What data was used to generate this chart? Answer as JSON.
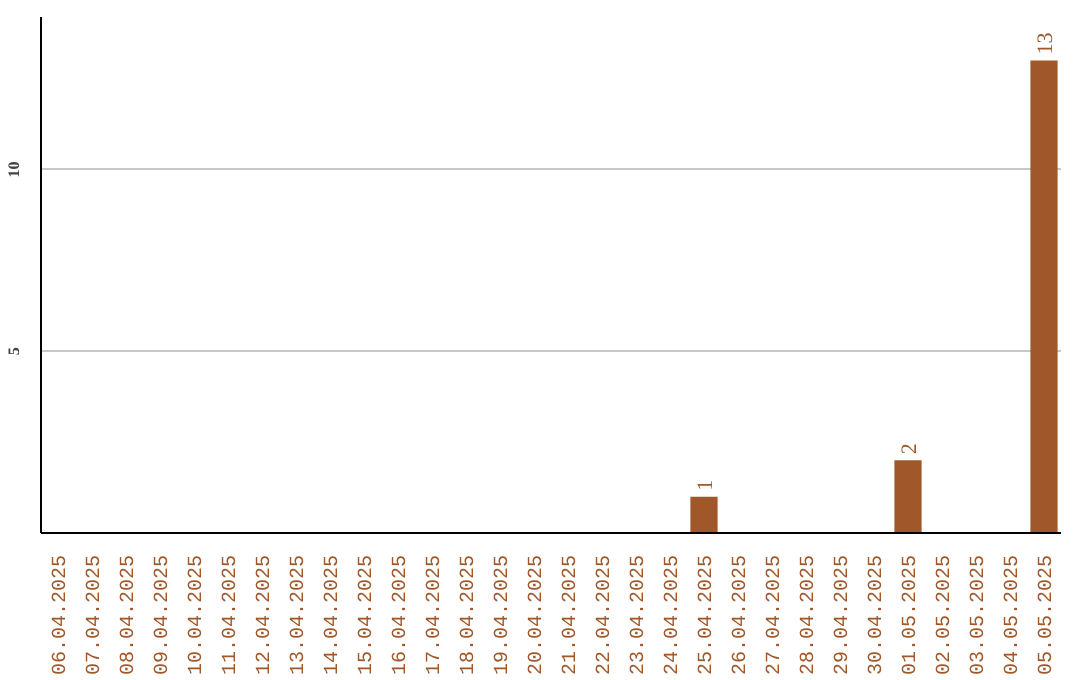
{
  "chart_data": {
    "type": "bar",
    "categories": [
      "06.04.2025",
      "07.04.2025",
      "08.04.2025",
      "09.04.2025",
      "10.04.2025",
      "11.04.2025",
      "12.04.2025",
      "13.04.2025",
      "14.04.2025",
      "15.04.2025",
      "16.04.2025",
      "17.04.2025",
      "18.04.2025",
      "19.04.2025",
      "20.04.2025",
      "21.04.2025",
      "22.04.2025",
      "23.04.2025",
      "24.04.2025",
      "25.04.2025",
      "26.04.2025",
      "27.04.2025",
      "28.04.2025",
      "29.04.2025",
      "30.04.2025",
      "01.05.2025",
      "02.05.2025",
      "03.05.2025",
      "04.05.2025",
      "05.05.2025"
    ],
    "values": [
      0,
      0,
      0,
      0,
      0,
      0,
      0,
      0,
      0,
      0,
      0,
      0,
      0,
      0,
      0,
      0,
      0,
      0,
      0,
      1,
      0,
      0,
      0,
      0,
      0,
      2,
      0,
      0,
      0,
      13
    ],
    "value_labels": [
      null,
      null,
      null,
      null,
      null,
      null,
      null,
      null,
      null,
      null,
      null,
      null,
      null,
      null,
      null,
      null,
      null,
      null,
      null,
      "1",
      null,
      null,
      null,
      null,
      null,
      "2",
      null,
      null,
      null,
      "13"
    ],
    "color": "#a0582a",
    "ylim": [
      0,
      14.2
    ],
    "yticks": [
      5,
      10
    ],
    "grid": "y"
  }
}
